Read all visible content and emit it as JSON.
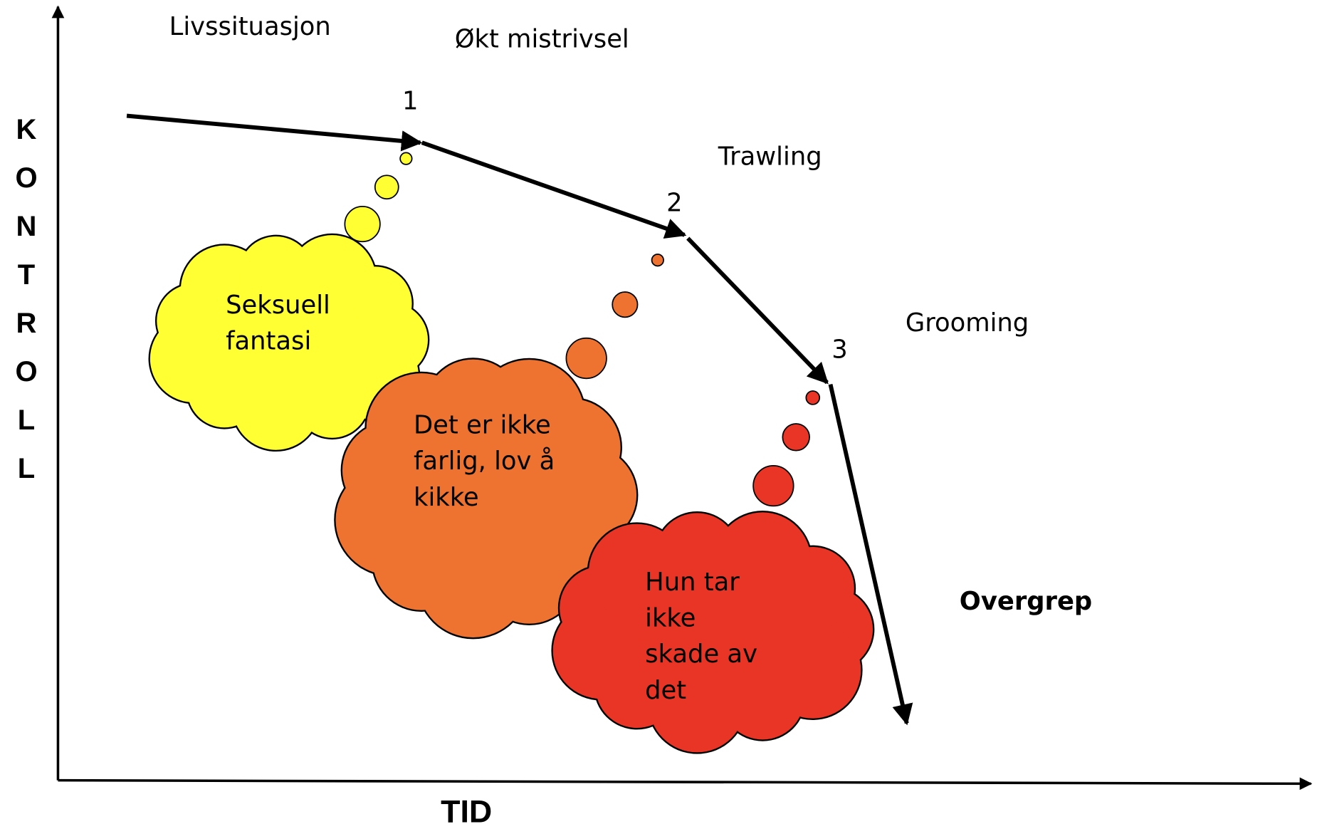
{
  "axes": {
    "x_label": "TID",
    "y_label": "KONTROLL"
  },
  "stages": [
    "Livssituasjon",
    "Økt mistrivsel",
    "Trawling",
    "Grooming",
    "Overgrep"
  ],
  "steps": [
    "1",
    "2",
    "3"
  ],
  "thoughts": [
    {
      "lines": [
        "Seksuell",
        "fantasi"
      ],
      "color": "#ffff33"
    },
    {
      "lines": [
        "Det er ikke",
        "farlig, lov å",
        "kikke"
      ],
      "color": "#ee7330"
    },
    {
      "lines": [
        "Hun tar",
        "ikke",
        "skade av",
        "det"
      ],
      "color": "#e93526"
    }
  ]
}
